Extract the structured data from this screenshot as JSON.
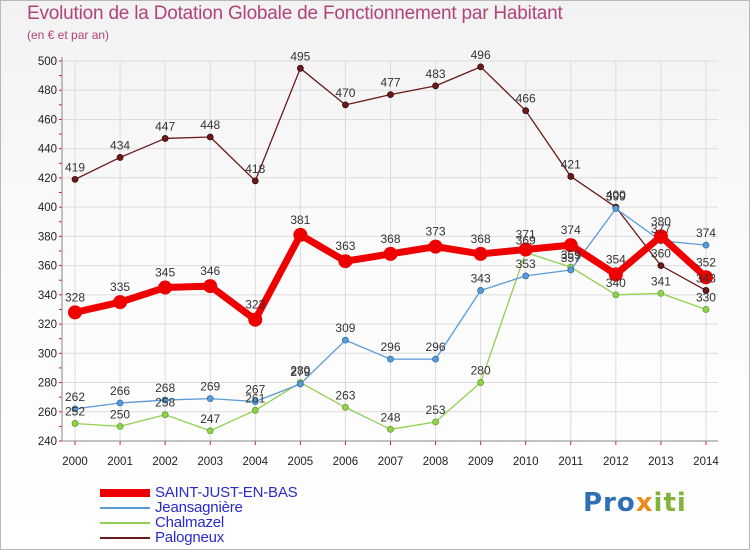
{
  "chart_data": {
    "type": "line",
    "title": "Evolution de la Dotation Globale de Fonctionnement par Habitant",
    "subtitle": "(en € et par an)",
    "x": [
      "2000",
      "2001",
      "2002",
      "2003",
      "2004",
      "2005",
      "2006",
      "2007",
      "2008",
      "2009",
      "2010",
      "2011",
      "2012",
      "2013",
      "2014"
    ],
    "ylim": [
      240,
      500
    ],
    "yticks": [
      240,
      260,
      280,
      300,
      320,
      340,
      360,
      380,
      400,
      420,
      440,
      460,
      480,
      500
    ],
    "grid": true,
    "legend_position": "bottom-left",
    "series": [
      {
        "name": "SAINT-JUST-EN-BAS",
        "color": "#ee0000",
        "values": [
          328,
          335,
          345,
          346,
          323,
          381,
          363,
          368,
          373,
          368,
          371,
          374,
          354,
          380,
          352
        ]
      },
      {
        "name": "Jeansagnière",
        "color": "#5b9bd5",
        "values": [
          262,
          266,
          268,
          269,
          267,
          279,
          309,
          296,
          296,
          343,
          353,
          357,
          399,
          377,
          374
        ]
      },
      {
        "name": "Chalmazel",
        "color": "#92d050",
        "values": [
          252,
          250,
          258,
          247,
          261,
          280,
          263,
          248,
          253,
          280,
          369,
          359,
          340,
          341,
          330
        ]
      },
      {
        "name": "Palogneux",
        "color": "#6b1a1a",
        "values": [
          419,
          434,
          447,
          448,
          418,
          495,
          470,
          477,
          483,
          496,
          466,
          421,
          400,
          360,
          343
        ]
      }
    ]
  },
  "logo": {
    "p1": "Pro",
    "p2": "x",
    "p3": "iti"
  }
}
